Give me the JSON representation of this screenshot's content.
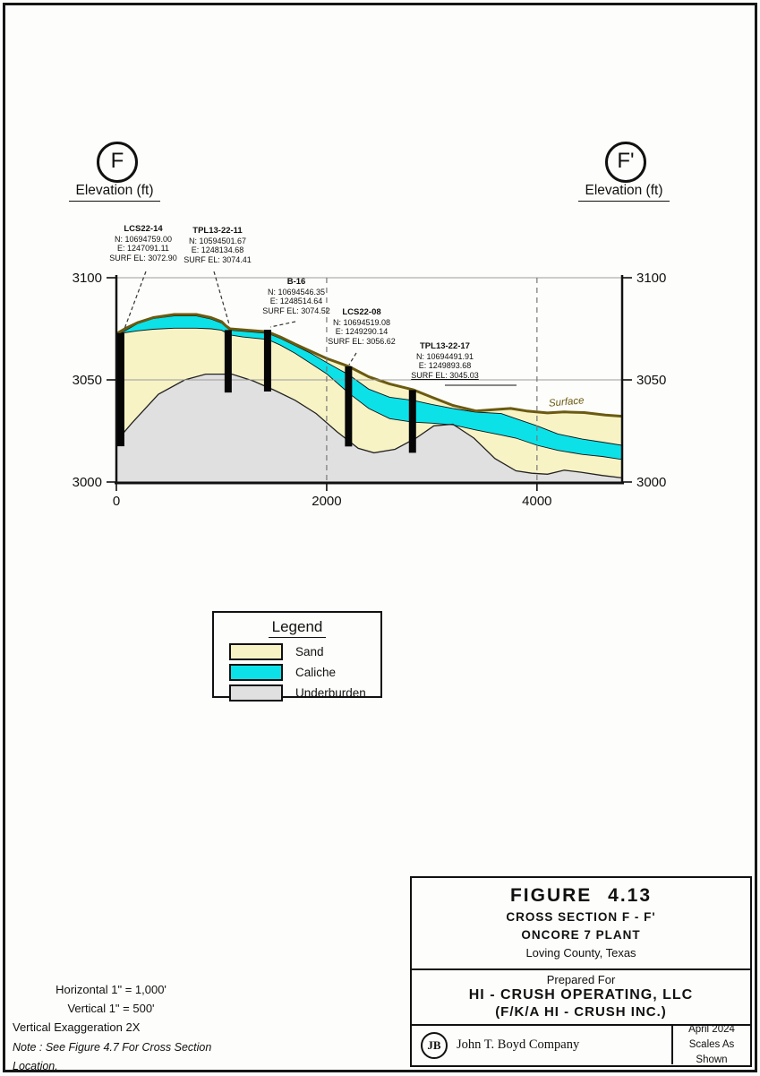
{
  "markers": {
    "start": "F",
    "end": "F'"
  },
  "axis": {
    "left_title": "Elevation (ft)",
    "right_title": "Elevation (ft)"
  },
  "chart_data": {
    "type": "area",
    "title": "Cross Section F - F'",
    "x_range": [
      0,
      4810
    ],
    "y_range": [
      3000,
      3100
    ],
    "x_ticks": [
      0,
      2000,
      4000
    ],
    "y_ticks": [
      3100,
      3050,
      3000
    ],
    "surface_label": "Surface",
    "colors": {
      "sand": "#f7f3c5",
      "caliche": "#0ce1e8",
      "underburden": "#e0e0e0",
      "surface_line": "#6b5a10",
      "gridline": "#9a9a9a",
      "axis": "#111111"
    },
    "layers": {
      "surface": [
        [
          0,
          3072.5
        ],
        [
          80,
          3075
        ],
        [
          200,
          3078
        ],
        [
          350,
          3080.5
        ],
        [
          550,
          3082
        ],
        [
          760,
          3082
        ],
        [
          900,
          3080.5
        ],
        [
          1000,
          3078.5
        ],
        [
          1040,
          3076.5
        ],
        [
          1080,
          3075
        ],
        [
          1200,
          3074.5
        ],
        [
          1440,
          3073.5
        ],
        [
          1560,
          3071
        ],
        [
          1700,
          3067.5
        ],
        [
          1850,
          3064
        ],
        [
          2000,
          3060.5
        ],
        [
          2210,
          3056.6
        ],
        [
          2400,
          3051.5
        ],
        [
          2600,
          3048
        ],
        [
          2820,
          3045.2
        ],
        [
          3000,
          3041.5
        ],
        [
          3200,
          3037.5
        ],
        [
          3420,
          3034.8
        ],
        [
          3600,
          3035.5
        ],
        [
          3750,
          3036
        ],
        [
          3900,
          3034.8
        ],
        [
          4100,
          3033.8
        ],
        [
          4260,
          3034.3
        ],
        [
          4450,
          3034
        ],
        [
          4650,
          3032.8
        ],
        [
          4810,
          3032.2
        ]
      ],
      "caliche_top": [
        [
          40,
          3072.8
        ],
        [
          200,
          3077.5
        ],
        [
          350,
          3080
        ],
        [
          550,
          3081.3
        ],
        [
          760,
          3081.3
        ],
        [
          900,
          3079.8
        ],
        [
          1000,
          3077.8
        ],
        [
          1080,
          3074.3
        ],
        [
          1200,
          3073.8
        ],
        [
          1440,
          3072.8
        ],
        [
          1560,
          3070.3
        ],
        [
          1700,
          3066.8
        ],
        [
          1850,
          3063
        ],
        [
          2000,
          3058.5
        ],
        [
          2210,
          3052.5
        ],
        [
          2400,
          3045.5
        ],
        [
          2600,
          3041.5
        ],
        [
          2820,
          3040
        ],
        [
          3000,
          3038
        ],
        [
          3200,
          3036
        ],
        [
          3420,
          3034.2
        ],
        [
          3660,
          3033.5
        ],
        [
          3800,
          3031
        ],
        [
          4000,
          3027.5
        ],
        [
          4200,
          3023.5
        ],
        [
          4430,
          3021
        ],
        [
          4620,
          3019.5
        ],
        [
          4810,
          3018
        ]
      ],
      "caliche_bottom": [
        [
          40,
          3072.8
        ],
        [
          200,
          3074
        ],
        [
          350,
          3074.8
        ],
        [
          550,
          3075.3
        ],
        [
          760,
          3075.3
        ],
        [
          900,
          3075
        ],
        [
          1000,
          3074.3
        ],
        [
          1080,
          3072
        ],
        [
          1200,
          3071
        ],
        [
          1440,
          3069.8
        ],
        [
          1560,
          3067
        ],
        [
          1700,
          3063
        ],
        [
          1850,
          3058
        ],
        [
          2000,
          3053
        ],
        [
          2210,
          3043.5
        ],
        [
          2400,
          3036
        ],
        [
          2600,
          3031
        ],
        [
          2820,
          3029.3
        ],
        [
          3000,
          3028.8
        ],
        [
          3200,
          3028
        ],
        [
          3420,
          3025.5
        ],
        [
          3660,
          3023
        ],
        [
          3800,
          3021.5
        ],
        [
          4000,
          3018
        ],
        [
          4200,
          3015.5
        ],
        [
          4430,
          3013.5
        ],
        [
          4620,
          3012.5
        ],
        [
          4810,
          3011
        ]
      ],
      "underburden_top": [
        [
          0,
          3020
        ],
        [
          150,
          3029
        ],
        [
          400,
          3043
        ],
        [
          650,
          3050
        ],
        [
          850,
          3052.8
        ],
        [
          1100,
          3052.8
        ],
        [
          1300,
          3049.5
        ],
        [
          1500,
          3045
        ],
        [
          1700,
          3040
        ],
        [
          1900,
          3033.5
        ],
        [
          2100,
          3024.5
        ],
        [
          2300,
          3016.5
        ],
        [
          2450,
          3014.3
        ],
        [
          2650,
          3016
        ],
        [
          2850,
          3021.5
        ],
        [
          3020,
          3027.5
        ],
        [
          3200,
          3028.3
        ],
        [
          3400,
          3021.5
        ],
        [
          3600,
          3011.5
        ],
        [
          3800,
          3005.5
        ],
        [
          3950,
          3004.3
        ],
        [
          4100,
          3003.8
        ],
        [
          4260,
          3005.8
        ],
        [
          4420,
          3004.8
        ],
        [
          4620,
          3003.2
        ],
        [
          4810,
          3002
        ]
      ]
    },
    "boreholes": [
      {
        "name": "LCS22-14",
        "northing": "N: 10694759.00",
        "easting": "E: 1247091.11",
        "surf": "SURF EL: 3072.90",
        "x": 42,
        "top": 3072.9,
        "bottom": 3017.5
      },
      {
        "name": "TPL13-22-11",
        "northing": "N: 10594501.67",
        "easting": "E: 1248134.68",
        "surf": "SURF EL: 3074.41",
        "x": 1063,
        "top": 3074.41,
        "bottom": 3043.8
      },
      {
        "name": "B-16",
        "northing": "N: 10694546.35",
        "easting": "E: 1248514.64",
        "surf": "SURF EL: 3074.52",
        "x": 1438,
        "top": 3074.52,
        "bottom": 3044.3
      },
      {
        "name": "LCS22-08",
        "northing": "N: 10694519.08",
        "easting": "E: 1249290.14",
        "surf": "SURF EL: 3056.62",
        "x": 2208,
        "top": 3056.62,
        "bottom": 3017.4
      },
      {
        "name": "TPL13-22-17",
        "northing": "N: 10694491.91",
        "easting": "E: 1249893.68",
        "surf": "SURF EL: 3045.03",
        "x": 2816,
        "top": 3045.03,
        "bottom": 3014.3
      }
    ]
  },
  "legend": {
    "title": "Legend",
    "items": [
      {
        "label": "Sand",
        "color": "#f7f3c5"
      },
      {
        "label": "Caliche",
        "color": "#0ce1e8"
      },
      {
        "label": "Underburden",
        "color": "#e0e0e0"
      }
    ]
  },
  "scale_notes": {
    "horizontal": "Horizontal  1\" = 1,000'",
    "vertical": "Vertical  1\" = 500'",
    "exaggeration": "Vertical Exaggeration 2X",
    "note": "Note : See Figure 4.7 For Cross Section Location."
  },
  "title_block": {
    "figure": "FIGURE  4.13",
    "subtitle": "CROSS  SECTION  F - F'",
    "plant": "ONCORE  7  PLANT",
    "county": "Loving County, Texas",
    "prepared_for": "Prepared For",
    "company": "HI - CRUSH  OPERATING,  LLC",
    "fka": "(F/K/A  HI - CRUSH  INC.)",
    "logo": "JB",
    "author": "John T. Boyd Company",
    "date": "April 2024",
    "scales": "Scales As Shown"
  }
}
